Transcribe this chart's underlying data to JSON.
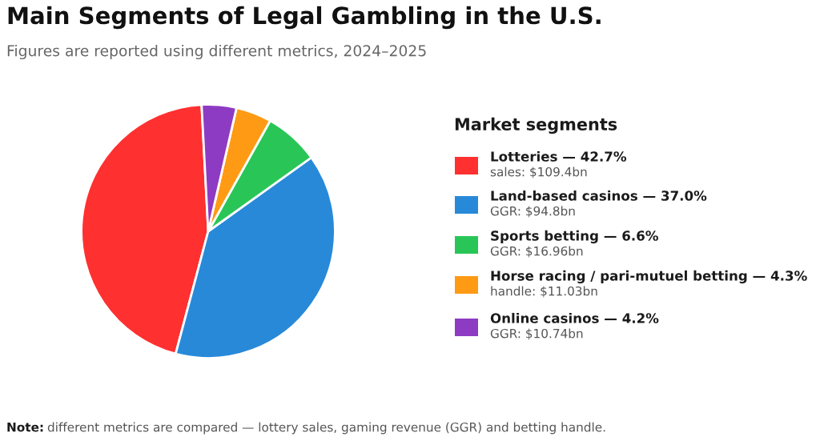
{
  "chart_data": {
    "type": "pie",
    "title": "Main Segments of Legal Gambling in the U.S.",
    "subtitle": "Figures are reported using different metrics, 2024–2025",
    "legend_title": "Market segments",
    "legend": "right",
    "categories": [
      "Lotteries — 42.7%",
      "Land-based casinos — 37.0%",
      "Sports betting — 6.6%",
      "Horse racing / pari-mutuel betting — 4.3%",
      "Online casinos — 4.2%"
    ],
    "values": [
      109.4,
      94.8,
      16.96,
      11.03,
      10.74
    ],
    "value_labels": [
      "sales: $109.4bn",
      "GGR: $94.8bn",
      "GGR: $16.96bn",
      "handle: $11.03bn",
      "GGR: $10.74bn"
    ],
    "colors": [
      "#ff3030",
      "#2889d8",
      "#29c657",
      "#ff9a14",
      "#8e3bc3"
    ],
    "annotations": [
      "Note:",
      "different metrics are compared — lottery sales, gaming revenue (GGR) and betting handle."
    ]
  }
}
